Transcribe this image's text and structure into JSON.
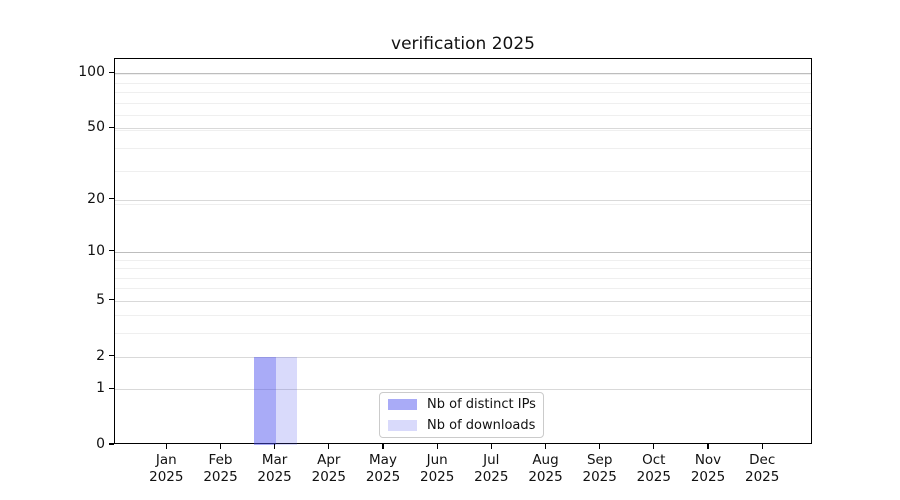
{
  "title": "verification 2025",
  "colors": {
    "ips_fill": "rgba(75,79,238,0.48)",
    "downloads_fill": "rgba(75,79,238,0.21)",
    "ips_rendered_hex": "#a8aaf7",
    "downloads_rendered_hex": "#d9dbfa",
    "axis": "#000000",
    "grid_major": "#d9d9d9",
    "grid_major_dark": "#bdbdbd",
    "grid_minor": "#efefef"
  },
  "legend": {
    "items": [
      {
        "label": "Nb of distinct IPs",
        "color": "rgba(75,79,238,0.48)"
      },
      {
        "label": "Nb of downloads",
        "color": "rgba(75,79,238,0.21)"
      }
    ],
    "position": "lower center"
  },
  "chart_data": {
    "type": "bar",
    "title": "verification 2025",
    "categories": [
      "Jan 2025",
      "Feb 2025",
      "Mar 2025",
      "Apr 2025",
      "May 2025",
      "Jun 2025",
      "Jul 2025",
      "Aug 2025",
      "Sep 2025",
      "Oct 2025",
      "Nov 2025",
      "Dec 2025"
    ],
    "series": [
      {
        "name": "Nb of distinct IPs",
        "values": [
          0,
          0,
          2,
          0,
          0,
          0,
          0,
          0,
          0,
          0,
          0,
          0
        ],
        "color": "rgba(75,79,238,0.48)"
      },
      {
        "name": "Nb of downloads",
        "values": [
          0,
          0,
          2,
          0,
          0,
          0,
          0,
          0,
          0,
          0,
          0,
          0
        ],
        "color": "rgba(75,79,238,0.21)"
      }
    ],
    "xlabel": "",
    "ylabel": "",
    "y_scale": "log10(1+value)",
    "y_ticks": [
      0,
      1,
      2,
      5,
      10,
      20,
      50,
      100
    ],
    "y_dark_grid_ticks": [
      10,
      100
    ],
    "y_minor_grid_values": [
      3,
      4,
      6,
      7,
      8,
      9,
      19,
      29,
      39,
      49,
      59,
      69,
      79,
      89,
      99
    ],
    "ylim": [
      0,
      120
    ],
    "grid": "both",
    "legend_position": "lower center",
    "bar_width_fraction": 0.4
  }
}
